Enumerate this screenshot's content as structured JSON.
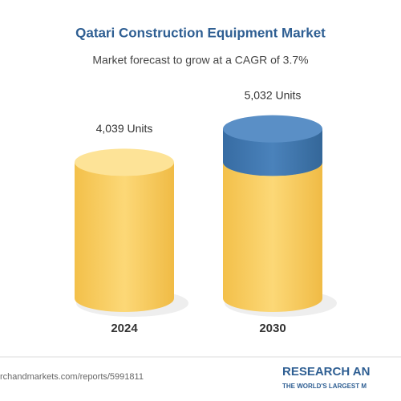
{
  "chart_data": {
    "type": "cylinder",
    "title": "Qatari Construction Equipment Market",
    "subtitle": "Market forecast to grow at a CAGR of 3.7%",
    "categories": [
      "2024",
      "2030"
    ],
    "values": [
      4039,
      5032
    ],
    "value_labels": [
      "4,039 Units",
      "5,032 Units"
    ],
    "color": "#f6c94e",
    "growth_color": "#3f76ad",
    "source": "rchandmarkets.com/reports/5991811",
    "logo": "RESEARCH AN",
    "logo_tagline": "THE WORLD'S LARGEST M"
  }
}
